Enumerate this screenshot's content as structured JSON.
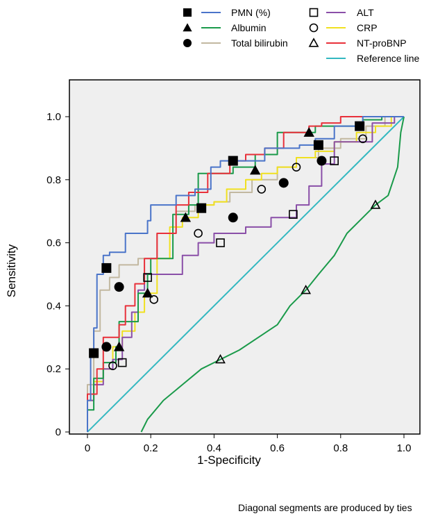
{
  "chart_data": {
    "type": "line",
    "xlabel": "1-Specificity",
    "ylabel": "Sensitivity",
    "xlim": [
      0,
      1
    ],
    "ylim": [
      0,
      1
    ],
    "x_ticks": [
      0,
      0.2,
      0.4,
      0.6,
      0.8,
      1.0
    ],
    "y_ticks": [
      0,
      0.2,
      0.4,
      0.6,
      0.8,
      1.0
    ],
    "x_tick_labels": [
      "0",
      "0.2",
      "0.4",
      "0.6",
      "0.8",
      "1.0"
    ],
    "y_tick_labels": [
      "0",
      "0.2",
      "0.4",
      "0.6",
      "0.8",
      "1.0"
    ],
    "grid": false,
    "legend_position": "top",
    "footnote": "Diagonal segments are produced by ties",
    "series": [
      {
        "name": "PMN (%)",
        "color": "#4a74c9",
        "marker": "filled-square",
        "x": [
          0,
          0.01,
          0.02,
          0.03,
          0.05,
          0.07,
          0.12,
          0.19,
          0.2,
          0.24,
          0.28,
          0.34,
          0.39,
          0.42,
          0.45,
          0.56,
          0.6,
          0.67,
          0.72,
          0.74,
          0.78,
          0.84,
          0.87,
          0.93,
          1.0
        ],
        "y": [
          0,
          0.1,
          0.25,
          0.33,
          0.5,
          0.56,
          0.57,
          0.63,
          0.67,
          0.72,
          0.72,
          0.75,
          0.77,
          0.84,
          0.86,
          0.86,
          0.9,
          0.9,
          0.91,
          0.93,
          0.93,
          0.97,
          0.97,
          1.0,
          1.0
        ],
        "markers_x": [
          0.02,
          0.06,
          0.36,
          0.46,
          0.73,
          0.86
        ],
        "markers_y": [
          0.25,
          0.52,
          0.71,
          0.86,
          0.91,
          0.97
        ]
      },
      {
        "name": "Albumin",
        "color": "#1a9a4a",
        "marker": "filled-triangle",
        "x": [
          0,
          0.02,
          0.05,
          0.09,
          0.1,
          0.16,
          0.19,
          0.2,
          0.27,
          0.32,
          0.35,
          0.46,
          0.53,
          0.6,
          0.7,
          0.72,
          0.82,
          0.87,
          0.93,
          1.0
        ],
        "y": [
          0,
          0.07,
          0.17,
          0.22,
          0.27,
          0.35,
          0.44,
          0.5,
          0.55,
          0.69,
          0.72,
          0.82,
          0.84,
          0.88,
          0.95,
          0.95,
          0.97,
          0.97,
          0.99,
          1.0
        ],
        "markers_x": [
          0.1,
          0.19,
          0.31,
          0.53,
          0.7
        ],
        "markers_y": [
          0.27,
          0.44,
          0.68,
          0.83,
          0.95
        ]
      },
      {
        "name": "Total bilirubin",
        "color": "#c2b8a0",
        "marker": "filled-circle",
        "x": [
          0,
          0.02,
          0.04,
          0.07,
          0.1,
          0.16,
          0.22,
          0.28,
          0.34,
          0.4,
          0.45,
          0.52,
          0.6,
          0.66,
          0.73,
          0.8,
          0.88,
          0.94,
          1.0
        ],
        "y": [
          0,
          0.15,
          0.32,
          0.45,
          0.49,
          0.53,
          0.55,
          0.63,
          0.7,
          0.72,
          0.73,
          0.76,
          0.8,
          0.84,
          0.87,
          0.9,
          0.93,
          0.97,
          1.0
        ],
        "markers_x": [
          0.06,
          0.1,
          0.46,
          0.62,
          0.74
        ],
        "markers_y": [
          0.27,
          0.46,
          0.68,
          0.79,
          0.86
        ]
      },
      {
        "name": "ALT",
        "color": "#8a4fa8",
        "marker": "open-square",
        "x": [
          0,
          0.02,
          0.05,
          0.08,
          0.11,
          0.14,
          0.16,
          0.18,
          0.2,
          0.3,
          0.35,
          0.4,
          0.42,
          0.5,
          0.58,
          0.63,
          0.66,
          0.7,
          0.74,
          0.78,
          0.84,
          0.9,
          0.97,
          1.0
        ],
        "y": [
          0,
          0.1,
          0.15,
          0.2,
          0.23,
          0.3,
          0.38,
          0.45,
          0.5,
          0.5,
          0.56,
          0.6,
          0.63,
          0.63,
          0.65,
          0.68,
          0.68,
          0.72,
          0.78,
          0.85,
          0.92,
          0.92,
          0.98,
          1.0
        ],
        "markers_x": [
          0.11,
          0.19,
          0.42,
          0.65,
          0.78
        ],
        "markers_y": [
          0.22,
          0.49,
          0.6,
          0.69,
          0.86
        ]
      },
      {
        "name": "CRP",
        "color": "#f0e020",
        "marker": "open-circle",
        "x": [
          0,
          0.02,
          0.05,
          0.08,
          0.11,
          0.15,
          0.18,
          0.22,
          0.26,
          0.3,
          0.35,
          0.4,
          0.44,
          0.5,
          0.55,
          0.6,
          0.66,
          0.72,
          0.78,
          0.85,
          0.91,
          0.96,
          1.0
        ],
        "y": [
          0,
          0.1,
          0.16,
          0.2,
          0.27,
          0.32,
          0.38,
          0.44,
          0.55,
          0.65,
          0.68,
          0.72,
          0.73,
          0.77,
          0.8,
          0.82,
          0.84,
          0.87,
          0.89,
          0.92,
          0.95,
          0.97,
          1.0
        ],
        "markers_x": [
          0.08,
          0.21,
          0.35,
          0.55,
          0.66,
          0.87
        ],
        "markers_y": [
          0.21,
          0.42,
          0.63,
          0.77,
          0.84,
          0.93
        ]
      },
      {
        "name": "NT-proBNP",
        "color": "#e8303a",
        "marker": "open-triangle",
        "x": [
          0,
          0.03,
          0.05,
          0.1,
          0.12,
          0.15,
          0.18,
          0.22,
          0.28,
          0.32,
          0.38,
          0.45,
          0.5,
          0.56,
          0.62,
          0.7,
          0.74,
          0.8,
          0.88,
          0.95,
          1.0
        ],
        "y": [
          0,
          0.12,
          0.2,
          0.3,
          0.34,
          0.4,
          0.47,
          0.55,
          0.63,
          0.72,
          0.76,
          0.82,
          0.86,
          0.88,
          0.9,
          0.95,
          0.97,
          0.98,
          1.0,
          1.0,
          1.0
        ],
        "markers_x": [
          0.42,
          0.69,
          0.91
        ],
        "markers_y": [
          0.23,
          0.45,
          0.72
        ]
      },
      {
        "name": "",
        "color": "#1a9a4a",
        "marker": "none",
        "x": [
          0.17,
          0.19,
          0.24,
          0.3,
          0.36,
          0.42,
          0.48,
          0.54,
          0.6,
          0.64,
          0.69,
          0.73,
          0.78,
          0.82,
          0.87,
          0.91,
          0.95,
          0.98,
          0.99,
          1.0
        ],
        "y": [
          0,
          0.04,
          0.1,
          0.15,
          0.2,
          0.23,
          0.26,
          0.3,
          0.34,
          0.4,
          0.45,
          0.5,
          0.56,
          0.63,
          0.68,
          0.72,
          0.75,
          0.84,
          0.95,
          1.0
        ]
      },
      {
        "name": "Reference line",
        "color": "#33b8c0",
        "marker": "none",
        "x": [
          0,
          1
        ],
        "y": [
          0,
          1
        ]
      }
    ]
  }
}
